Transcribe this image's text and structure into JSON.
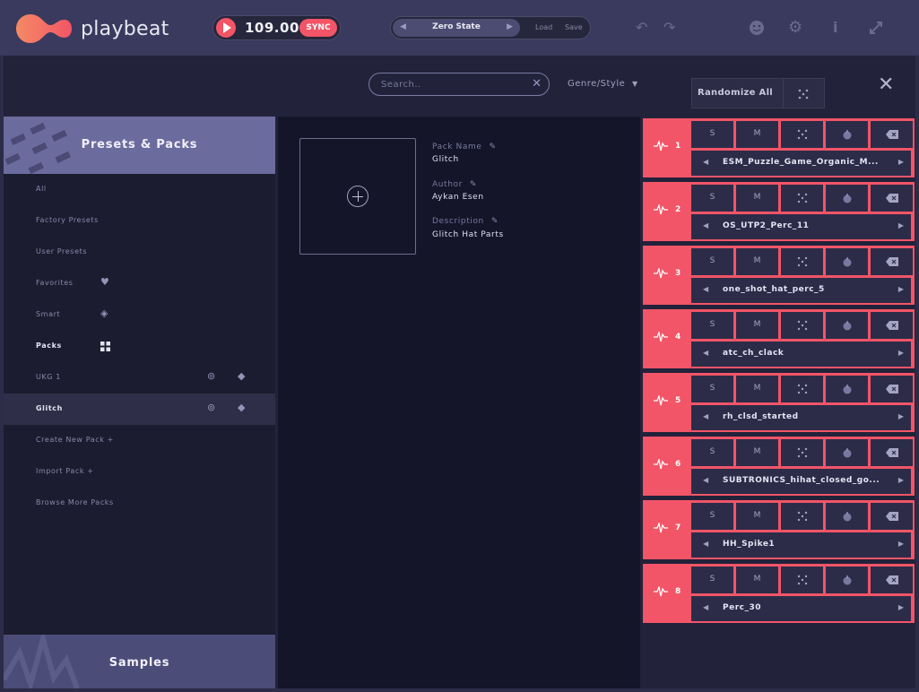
{
  "app": {
    "name": "playbeat",
    "colors": {
      "accent": "#f25567",
      "panel": "#22223a",
      "header": "#6b6b9e"
    }
  },
  "transport": {
    "bpm": "109.00",
    "sync_label": "SYNC"
  },
  "preset": {
    "name": "Zero State",
    "load_label": "Load",
    "save_label": "Save"
  },
  "toolbar": {
    "icons": [
      "undo-icon",
      "redo-icon",
      "face-icon",
      "gear-icon",
      "info-icon",
      "expand-icon"
    ]
  },
  "search": {
    "placeholder": "Search..",
    "genre_label": "Genre/Style",
    "randomize_label": "Randomize All"
  },
  "sidebar": {
    "title": "Presets & Packs",
    "items": [
      {
        "label": "All"
      },
      {
        "label": "Factory Presets"
      },
      {
        "label": "User Presets"
      },
      {
        "label": "Favorites"
      },
      {
        "label": "Smart"
      },
      {
        "label": "Packs"
      },
      {
        "label": "UKG 1"
      },
      {
        "label": "Glitch"
      },
      {
        "label": "Create New Pack +"
      },
      {
        "label": "Import Pack +"
      },
      {
        "label": "Browse More Packs"
      }
    ],
    "footer": "Samples"
  },
  "pack": {
    "name_label": "Pack Name",
    "name": "Glitch",
    "author_label": "Author",
    "author": "Aykan Esen",
    "description_label": "Description",
    "description": "Glitch Hat Parts"
  },
  "tracks": [
    {
      "num": "1",
      "solo": "S",
      "mute": "M",
      "sample": "ESM_Puzzle_Game_Organic_M..."
    },
    {
      "num": "2",
      "solo": "S",
      "mute": "M",
      "sample": "OS_UTP2_Perc_11"
    },
    {
      "num": "3",
      "solo": "S",
      "mute": "M",
      "sample": "one_shot_hat_perc_5"
    },
    {
      "num": "4",
      "solo": "S",
      "mute": "M",
      "sample": "atc_ch_clack"
    },
    {
      "num": "5",
      "solo": "S",
      "mute": "M",
      "sample": "rh_clsd_started"
    },
    {
      "num": "6",
      "solo": "S",
      "mute": "M",
      "sample": "SUBTRONICS_hihat_closed_go..."
    },
    {
      "num": "7",
      "solo": "S",
      "mute": "M",
      "sample": "HH_Spike1"
    },
    {
      "num": "8",
      "solo": "S",
      "mute": "M",
      "sample": "Perc_30"
    }
  ]
}
